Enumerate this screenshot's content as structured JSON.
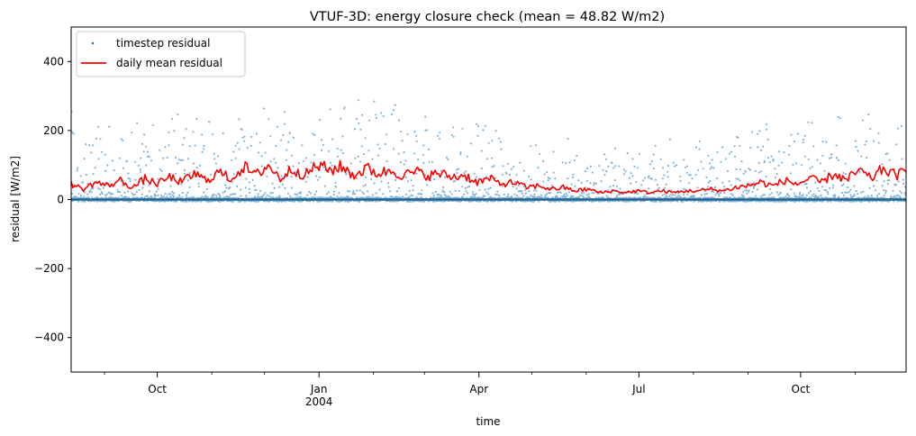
{
  "chart_data": {
    "type": "line",
    "title": "VTUF-3D: energy closure check (mean = 48.82 W/m2)",
    "xlabel": "time",
    "ylabel": "residual [W/m2]",
    "xlim": [
      "2003-08-13",
      "2004-11-30"
    ],
    "ylim": [
      -500,
      500
    ],
    "y_ticks": [
      -400,
      -200,
      0,
      200,
      400
    ],
    "y_tick_labels": [
      "−400",
      "−200",
      "0",
      "200",
      "400"
    ],
    "x_major_ticks": [
      {
        "date": "2003-10-01",
        "label": "Oct",
        "sublabel": ""
      },
      {
        "date": "2004-01-01",
        "label": "Jan",
        "sublabel": "2004"
      },
      {
        "date": "2004-04-01",
        "label": "Apr",
        "sublabel": ""
      },
      {
        "date": "2004-07-01",
        "label": "Jul",
        "sublabel": ""
      },
      {
        "date": "2004-10-01",
        "label": "Oct",
        "sublabel": ""
      }
    ],
    "x_minor_ticks": [
      "2003-09-01",
      "2003-11-01",
      "2003-12-01",
      "2004-02-01",
      "2004-03-01",
      "2004-05-01",
      "2004-06-01",
      "2004-08-01",
      "2004-09-01",
      "2004-11-01"
    ],
    "grid": false,
    "legend_position": "top-left",
    "series": [
      {
        "name": "timestep residual",
        "kind": "scatter",
        "color": "#1f77b4",
        "description_points": "dense half-hourly residuals; envelope maxima by month (date, max)",
        "envelope": [
          [
            "2003-08-15",
            230
          ],
          [
            "2003-09-15",
            240
          ],
          [
            "2003-10-15",
            275
          ],
          [
            "2003-11-15",
            285
          ],
          [
            "2003-12-15",
            290
          ],
          [
            "2004-01-01",
            310
          ],
          [
            "2004-01-20",
            320
          ],
          [
            "2004-02-15",
            300
          ],
          [
            "2004-03-10",
            270
          ],
          [
            "2004-04-01",
            230
          ],
          [
            "2004-04-20",
            205
          ],
          [
            "2004-05-15",
            185
          ],
          [
            "2004-06-15",
            165
          ],
          [
            "2004-07-01",
            170
          ],
          [
            "2004-07-20",
            185
          ],
          [
            "2004-08-15",
            210
          ],
          [
            "2004-09-10",
            230
          ],
          [
            "2004-10-01",
            245
          ],
          [
            "2004-10-20",
            270
          ],
          [
            "2004-11-15",
            290
          ],
          [
            "2004-11-30",
            295
          ]
        ]
      },
      {
        "name": "daily mean residual",
        "kind": "line",
        "color": "#ff0000",
        "points": [
          [
            "2003-08-13",
            45
          ],
          [
            "2003-08-20",
            30
          ],
          [
            "2003-08-27",
            50
          ],
          [
            "2003-09-03",
            40
          ],
          [
            "2003-09-10",
            55
          ],
          [
            "2003-09-17",
            35
          ],
          [
            "2003-09-24",
            60
          ],
          [
            "2003-10-01",
            45
          ],
          [
            "2003-10-08",
            65
          ],
          [
            "2003-10-15",
            50
          ],
          [
            "2003-10-22",
            75
          ],
          [
            "2003-10-29",
            55
          ],
          [
            "2003-11-05",
            80
          ],
          [
            "2003-11-12",
            60
          ],
          [
            "2003-11-19",
            95
          ],
          [
            "2003-11-26",
            70
          ],
          [
            "2003-12-03",
            100
          ],
          [
            "2003-12-10",
            60
          ],
          [
            "2003-12-17",
            90
          ],
          [
            "2003-12-24",
            70
          ],
          [
            "2003-12-31",
            100
          ],
          [
            "2004-01-07",
            85
          ],
          [
            "2004-01-14",
            95
          ],
          [
            "2004-01-21",
            70
          ],
          [
            "2004-01-28",
            90
          ],
          [
            "2004-02-04",
            75
          ],
          [
            "2004-02-11",
            85
          ],
          [
            "2004-02-18",
            70
          ],
          [
            "2004-02-25",
            80
          ],
          [
            "2004-03-03",
            70
          ],
          [
            "2004-03-10",
            75
          ],
          [
            "2004-03-17",
            65
          ],
          [
            "2004-03-24",
            70
          ],
          [
            "2004-03-31",
            50
          ],
          [
            "2004-04-07",
            60
          ],
          [
            "2004-04-14",
            45
          ],
          [
            "2004-04-21",
            50
          ],
          [
            "2004-04-28",
            35
          ],
          [
            "2004-05-05",
            40
          ],
          [
            "2004-05-12",
            30
          ],
          [
            "2004-05-19",
            35
          ],
          [
            "2004-05-26",
            25
          ],
          [
            "2004-06-02",
            30
          ],
          [
            "2004-06-09",
            20
          ],
          [
            "2004-06-16",
            25
          ],
          [
            "2004-06-23",
            20
          ],
          [
            "2004-06-30",
            25
          ],
          [
            "2004-07-07",
            20
          ],
          [
            "2004-07-14",
            25
          ],
          [
            "2004-07-21",
            20
          ],
          [
            "2004-07-28",
            25
          ],
          [
            "2004-08-04",
            25
          ],
          [
            "2004-08-11",
            30
          ],
          [
            "2004-08-18",
            25
          ],
          [
            "2004-08-25",
            35
          ],
          [
            "2004-09-01",
            40
          ],
          [
            "2004-09-08",
            50
          ],
          [
            "2004-09-15",
            40
          ],
          [
            "2004-09-22",
            55
          ],
          [
            "2004-09-29",
            45
          ],
          [
            "2004-10-06",
            60
          ],
          [
            "2004-10-13",
            50
          ],
          [
            "2004-10-20",
            75
          ],
          [
            "2004-10-27",
            55
          ],
          [
            "2004-11-03",
            85
          ],
          [
            "2004-11-10",
            60
          ],
          [
            "2004-11-17",
            90
          ],
          [
            "2004-11-24",
            70
          ],
          [
            "2004-11-30",
            80
          ]
        ]
      }
    ]
  }
}
